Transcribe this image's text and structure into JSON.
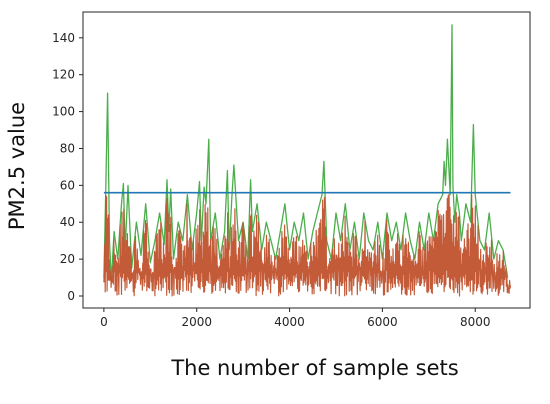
{
  "chart_data": {
    "type": "line",
    "title": "",
    "xlabel": "The number of sample sets",
    "ylabel": "PM2.5 value",
    "xlim": [
      -450,
      9180
    ],
    "ylim": [
      -6.5,
      154
    ],
    "grid": false,
    "legend": "none",
    "x_ticks": [
      0,
      2000,
      4000,
      6000,
      8000
    ],
    "x_tick_labels": [
      "0",
      "2000",
      "4000",
      "6000",
      "8000"
    ],
    "y_ticks": [
      0,
      20,
      40,
      60,
      80,
      100,
      120,
      140
    ],
    "y_tick_labels": [
      "0",
      "20",
      "40",
      "60",
      "80",
      "100",
      "120",
      "140"
    ],
    "colors": {
      "threshold": "#1f77b4",
      "actual": "#2ca02c",
      "clipped": "#c0522e",
      "axes": "#262626"
    },
    "series": [
      {
        "role": "actual",
        "color": "#2ca02c",
        "x": [
          0,
          40,
          80,
          120,
          160,
          220,
          300,
          380,
          420,
          460,
          520,
          600,
          700,
          800,
          900,
          1000,
          1100,
          1200,
          1300,
          1360,
          1400,
          1440,
          1500,
          1600,
          1700,
          1800,
          1900,
          2000,
          2060,
          2100,
          2160,
          2200,
          2260,
          2300,
          2400,
          2500,
          2600,
          2660,
          2700,
          2760,
          2800,
          2900,
          3000,
          3100,
          3160,
          3200,
          3300,
          3400,
          3500,
          3600,
          3700,
          3800,
          3900,
          4000,
          4100,
          4200,
          4300,
          4400,
          4500,
          4600,
          4700,
          4740,
          4800,
          4900,
          5000,
          5100,
          5200,
          5300,
          5400,
          5500,
          5600,
          5700,
          5800,
          5900,
          6000,
          6100,
          6200,
          6300,
          6400,
          6500,
          6600,
          6700,
          6800,
          6900,
          7000,
          7100,
          7200,
          7300,
          7330,
          7360,
          7400,
          7430,
          7460,
          7500,
          7520,
          7560,
          7600,
          7660,
          7700,
          7800,
          7900,
          7960,
          8000,
          8060,
          8100,
          8200,
          8300,
          8400,
          8500,
          8600,
          8700
        ],
        "y": [
          10,
          56,
          110,
          30,
          8,
          35,
          20,
          50,
          61,
          25,
          60,
          15,
          40,
          22,
          50,
          18,
          30,
          45,
          28,
          63,
          35,
          58,
          20,
          40,
          30,
          55,
          25,
          45,
          62,
          30,
          59,
          50,
          85,
          30,
          45,
          20,
          35,
          68,
          25,
          55,
          71,
          30,
          40,
          20,
          63,
          35,
          50,
          25,
          40,
          30,
          20,
          35,
          50,
          25,
          40,
          30,
          45,
          20,
          35,
          45,
          55,
          73,
          30,
          20,
          45,
          30,
          50,
          25,
          40,
          20,
          45,
          30,
          25,
          40,
          20,
          45,
          30,
          40,
          25,
          45,
          30,
          20,
          40,
          25,
          45,
          30,
          50,
          55,
          73,
          60,
          85,
          70,
          55,
          147,
          60,
          40,
          55,
          45,
          30,
          50,
          40,
          93,
          55,
          40,
          30,
          25,
          45,
          20,
          30,
          25,
          10
        ]
      },
      {
        "role": "threshold",
        "color": "#1f77b4",
        "x": [
          0,
          8760
        ],
        "y": [
          56,
          56
        ]
      }
    ]
  }
}
